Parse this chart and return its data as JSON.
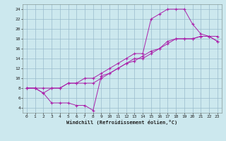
{
  "xlabel": "Windchill (Refroidissement éolien,°C)",
  "bg_color": "#cce8ee",
  "grid_color": "#99bbcc",
  "line_color": "#aa22aa",
  "line1_x": [
    0,
    1,
    2,
    3,
    4,
    5,
    6,
    7,
    8,
    9,
    10,
    11,
    12,
    13,
    14,
    15,
    16,
    17,
    18,
    19,
    20,
    21,
    22,
    23
  ],
  "line1_y": [
    8,
    8,
    8,
    8,
    8,
    9,
    9,
    9,
    9,
    10,
    11,
    12,
    13,
    14,
    14,
    15,
    16,
    17,
    18,
    18,
    18,
    18.5,
    18.5,
    17.5
  ],
  "line2_x": [
    0,
    1,
    2,
    3,
    4,
    5,
    6,
    7,
    8,
    9,
    10,
    11,
    12,
    13,
    14,
    15,
    16,
    17,
    18,
    19,
    20,
    21,
    22,
    23
  ],
  "line2_y": [
    8,
    8,
    7,
    5,
    5,
    5,
    4.5,
    4.5,
    3.5,
    10.5,
    11,
    12,
    13,
    13.5,
    14.5,
    15.5,
    16,
    17.5,
    18,
    18,
    18,
    18.5,
    18.5,
    17.5
  ],
  "line3_x": [
    0,
    1,
    2,
    3,
    4,
    5,
    6,
    7,
    8,
    9,
    10,
    11,
    12,
    13,
    14,
    15,
    16,
    17,
    18,
    19,
    20,
    21,
    22,
    23
  ],
  "line3_y": [
    8,
    8,
    7,
    8,
    8,
    9,
    9,
    10,
    10,
    11,
    12,
    13,
    14,
    15,
    15,
    22,
    23,
    24,
    24,
    24,
    21,
    19,
    18.5,
    18.5
  ],
  "xlim": [
    -0.5,
    23.5
  ],
  "ylim": [
    3,
    25
  ],
  "yticks": [
    4,
    6,
    8,
    10,
    12,
    14,
    16,
    18,
    20,
    22,
    24
  ],
  "xticks": [
    0,
    1,
    2,
    3,
    4,
    5,
    6,
    7,
    8,
    9,
    10,
    11,
    12,
    13,
    14,
    15,
    16,
    17,
    18,
    19,
    20,
    21,
    22,
    23
  ]
}
